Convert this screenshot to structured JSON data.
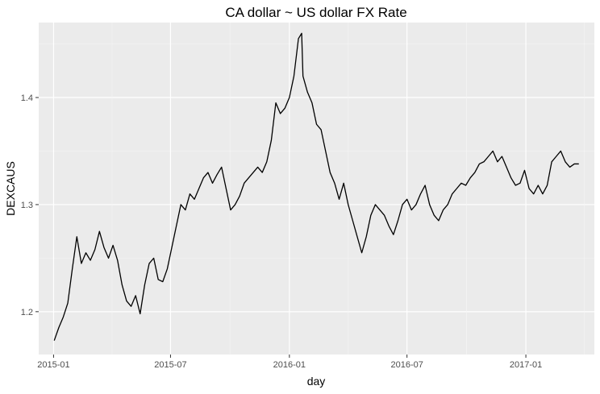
{
  "chart_data": {
    "type": "line",
    "title": "CA dollar ~ US dollar FX Rate",
    "xlabel": "day",
    "ylabel": "DEXCAUS",
    "x_ticks": [
      "2015-01",
      "2015-07",
      "2016-01",
      "2016-07",
      "2017-01"
    ],
    "y_ticks": [
      "1.2",
      "1.3",
      "1.4"
    ],
    "ylim": [
      1.16,
      1.47
    ],
    "xlim": [
      "2014-12-09",
      "2017-04-17"
    ],
    "grid": true,
    "background": "#ebebeb",
    "line_color": "#000000",
    "series": [
      {
        "x": [
          "2015-01-02",
          "2015-01-09",
          "2015-01-16",
          "2015-01-23",
          "2015-01-30",
          "2015-02-06",
          "2015-02-13",
          "2015-02-20",
          "2015-02-27",
          "2015-03-06",
          "2015-03-13",
          "2015-03-20",
          "2015-03-27",
          "2015-04-03",
          "2015-04-10",
          "2015-04-17",
          "2015-04-24",
          "2015-05-01",
          "2015-05-08",
          "2015-05-15",
          "2015-05-22",
          "2015-05-29",
          "2015-06-05",
          "2015-06-12",
          "2015-06-19",
          "2015-06-26",
          "2015-07-03",
          "2015-07-10",
          "2015-07-17",
          "2015-07-24",
          "2015-07-31",
          "2015-08-07",
          "2015-08-14",
          "2015-08-21",
          "2015-08-28",
          "2015-09-04",
          "2015-09-11",
          "2015-09-18",
          "2015-09-25",
          "2015-10-02",
          "2015-10-09",
          "2015-10-16",
          "2015-10-23",
          "2015-10-30",
          "2015-11-06",
          "2015-11-13",
          "2015-11-20",
          "2015-11-27",
          "2015-12-04",
          "2015-12-11",
          "2015-12-18",
          "2015-12-25",
          "2016-01-01",
          "2016-01-08",
          "2016-01-15",
          "2016-01-20",
          "2016-01-22",
          "2016-01-29",
          "2016-02-05",
          "2016-02-12",
          "2016-02-19",
          "2016-02-26",
          "2016-03-04",
          "2016-03-11",
          "2016-03-18",
          "2016-03-25",
          "2016-04-01",
          "2016-04-08",
          "2016-04-15",
          "2016-04-22",
          "2016-04-29",
          "2016-05-06",
          "2016-05-13",
          "2016-05-20",
          "2016-05-27",
          "2016-06-03",
          "2016-06-10",
          "2016-06-17",
          "2016-06-24",
          "2016-07-01",
          "2016-07-08",
          "2016-07-15",
          "2016-07-22",
          "2016-07-29",
          "2016-08-05",
          "2016-08-12",
          "2016-08-19",
          "2016-08-26",
          "2016-09-02",
          "2016-09-09",
          "2016-09-16",
          "2016-09-23",
          "2016-09-30",
          "2016-10-07",
          "2016-10-14",
          "2016-10-21",
          "2016-10-28",
          "2016-11-04",
          "2016-11-11",
          "2016-11-18",
          "2016-11-25",
          "2016-12-02",
          "2016-12-09",
          "2016-12-16",
          "2016-12-23",
          "2016-12-30",
          "2017-01-06",
          "2017-01-13",
          "2017-01-20",
          "2017-01-27",
          "2017-02-03",
          "2017-02-10",
          "2017-02-17",
          "2017-02-24",
          "2017-03-03",
          "2017-03-10",
          "2017-03-17",
          "2017-03-24"
        ],
        "y": [
          1.173,
          1.185,
          1.195,
          1.208,
          1.24,
          1.27,
          1.245,
          1.255,
          1.248,
          1.258,
          1.275,
          1.26,
          1.25,
          1.262,
          1.248,
          1.225,
          1.21,
          1.205,
          1.215,
          1.198,
          1.225,
          1.245,
          1.25,
          1.23,
          1.228,
          1.24,
          1.26,
          1.28,
          1.3,
          1.295,
          1.31,
          1.305,
          1.315,
          1.325,
          1.33,
          1.32,
          1.328,
          1.335,
          1.315,
          1.295,
          1.3,
          1.308,
          1.32,
          1.325,
          1.33,
          1.335,
          1.33,
          1.34,
          1.36,
          1.395,
          1.385,
          1.39,
          1.4,
          1.42,
          1.455,
          1.46,
          1.42,
          1.405,
          1.395,
          1.375,
          1.37,
          1.35,
          1.33,
          1.32,
          1.305,
          1.32,
          1.3,
          1.285,
          1.27,
          1.255,
          1.27,
          1.29,
          1.3,
          1.295,
          1.29,
          1.28,
          1.272,
          1.285,
          1.3,
          1.305,
          1.295,
          1.3,
          1.31,
          1.318,
          1.3,
          1.29,
          1.285,
          1.295,
          1.3,
          1.31,
          1.315,
          1.32,
          1.318,
          1.325,
          1.33,
          1.338,
          1.34,
          1.345,
          1.35,
          1.34,
          1.345,
          1.335,
          1.325,
          1.318,
          1.32,
          1.332,
          1.315,
          1.31,
          1.318,
          1.31,
          1.318,
          1.34,
          1.345,
          1.35,
          1.34,
          1.335,
          1.338,
          1.338
        ]
      }
    ]
  }
}
